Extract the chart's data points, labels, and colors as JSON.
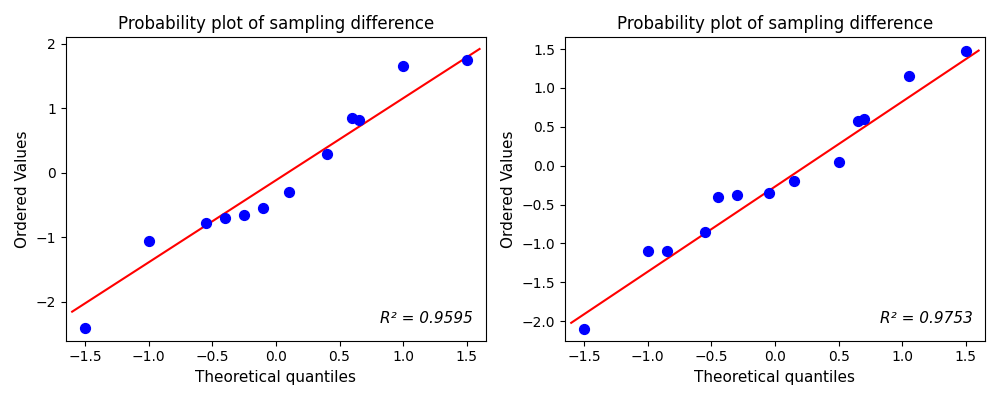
{
  "title": "Probability plot of sampling difference",
  "xlabel": "Theoretical quantiles",
  "ylabel": "Ordered Values",
  "plot1": {
    "x": [
      -1.5,
      -1.0,
      -0.55,
      -0.4,
      -0.25,
      -0.1,
      0.1,
      0.4,
      0.6,
      0.65,
      1.0,
      1.5
    ],
    "y": [
      -2.4,
      -1.05,
      -0.78,
      -0.7,
      -0.65,
      -0.55,
      -0.3,
      0.3,
      0.85,
      0.82,
      1.65,
      1.75
    ],
    "line_x": [
      -1.6,
      1.6
    ],
    "line_y": [
      -2.15,
      1.92
    ],
    "r2": "R² = 0.9595",
    "xlim": [
      -1.65,
      1.65
    ],
    "ylim": [
      -2.6,
      2.1
    ]
  },
  "plot2": {
    "x": [
      -1.5,
      -1.0,
      -0.85,
      -0.55,
      -0.45,
      -0.3,
      -0.05,
      0.15,
      0.5,
      0.65,
      0.7,
      1.05,
      1.5
    ],
    "y": [
      -2.1,
      -1.1,
      -1.1,
      -0.85,
      -0.4,
      -0.38,
      -0.35,
      -0.2,
      0.05,
      0.57,
      0.6,
      1.15,
      1.47
    ],
    "line_x": [
      -1.6,
      1.6
    ],
    "line_y": [
      -2.02,
      1.48
    ],
    "r2": "R² = 0.9753",
    "xlim": [
      -1.65,
      1.65
    ],
    "ylim": [
      -2.25,
      1.65
    ]
  },
  "dot_color": "#0000ff",
  "line_color": "#ff0000",
  "dot_size": 50
}
